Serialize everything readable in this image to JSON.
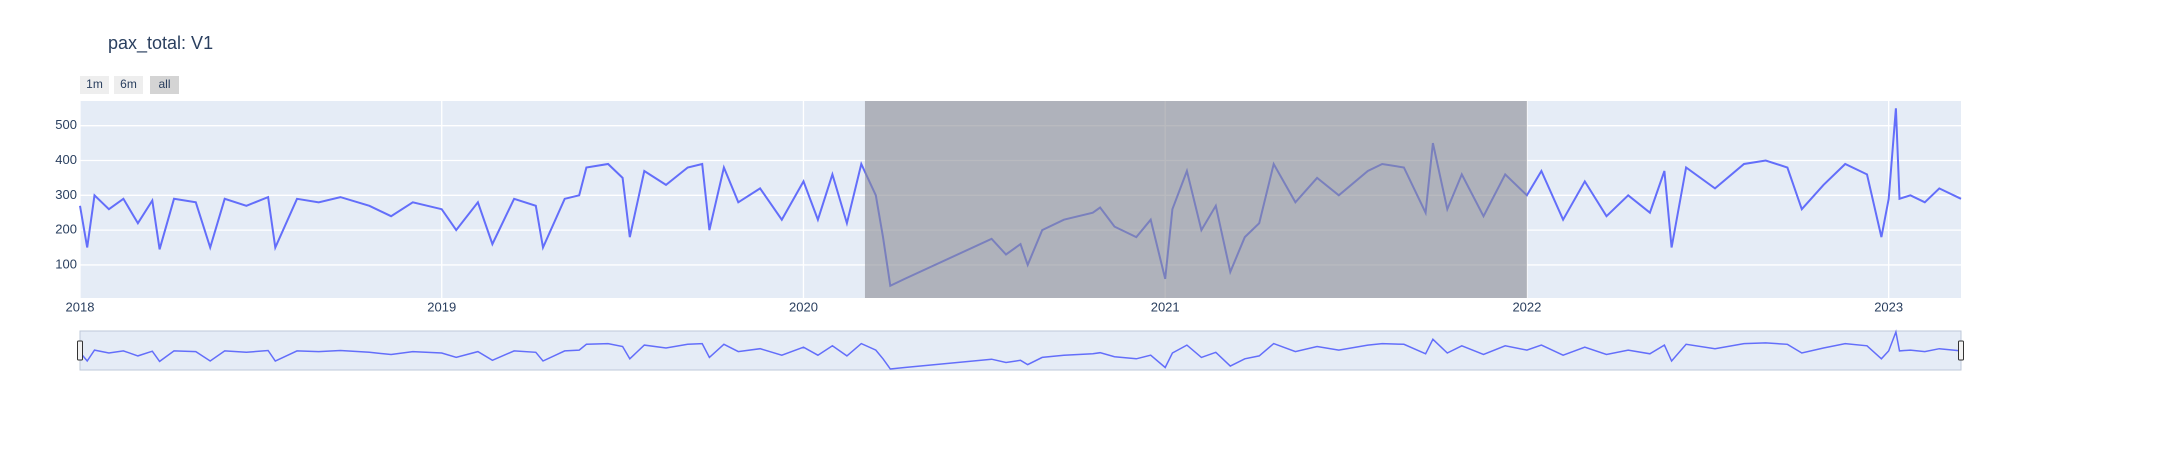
{
  "chart_data": {
    "type": "line",
    "title": "pax_total: V1",
    "buttons": [
      "1m",
      "6m",
      "all"
    ],
    "x": [
      2018.0,
      2018.02,
      2018.04,
      2018.08,
      2018.12,
      2018.16,
      2018.2,
      2018.22,
      2018.26,
      2018.32,
      2018.36,
      2018.4,
      2018.46,
      2018.52,
      2018.54,
      2018.6,
      2018.66,
      2018.72,
      2018.8,
      2018.86,
      2018.92,
      2019.0,
      2019.04,
      2019.1,
      2019.14,
      2019.2,
      2019.26,
      2019.28,
      2019.34,
      2019.38,
      2019.4,
      2019.46,
      2019.5,
      2019.52,
      2019.56,
      2019.62,
      2019.68,
      2019.72,
      2019.74,
      2019.78,
      2019.82,
      2019.88,
      2019.94,
      2020.0,
      2020.04,
      2020.08,
      2020.12,
      2020.16,
      2020.2,
      2020.22,
      2020.24,
      2020.28,
      2020.52,
      2020.56,
      2020.6,
      2020.62,
      2020.66,
      2020.72,
      2020.8,
      2020.82,
      2020.86,
      2020.92,
      2020.96,
      2021.0,
      2021.02,
      2021.06,
      2021.1,
      2021.14,
      2021.18,
      2021.22,
      2021.26,
      2021.3,
      2021.36,
      2021.42,
      2021.48,
      2021.56,
      2021.6,
      2021.66,
      2021.72,
      2021.74,
      2021.78,
      2021.82,
      2021.88,
      2021.94,
      2022.0,
      2022.04,
      2022.1,
      2022.16,
      2022.22,
      2022.28,
      2022.34,
      2022.38,
      2022.4,
      2022.44,
      2022.52,
      2022.6,
      2022.66,
      2022.72,
      2022.76,
      2022.82,
      2022.88,
      2022.94,
      2022.98,
      2023.0,
      2023.02,
      2023.03,
      2023.06,
      2023.1,
      2023.14,
      2023.2
    ],
    "series": [
      {
        "color": "#636efa",
        "values": [
          270,
          150,
          300,
          260,
          290,
          220,
          285,
          145,
          290,
          280,
          150,
          290,
          270,
          295,
          150,
          290,
          280,
          295,
          270,
          240,
          280,
          260,
          200,
          280,
          160,
          290,
          270,
          150,
          290,
          300,
          380,
          390,
          350,
          180,
          370,
          330,
          380,
          390,
          200,
          380,
          280,
          320,
          230,
          340,
          230,
          360,
          220,
          390,
          300,
          180,
          40,
          60,
          175,
          130,
          160,
          100,
          200,
          230,
          250,
          265,
          210,
          180,
          230,
          60,
          260,
          370,
          200,
          270,
          80,
          180,
          220,
          390,
          280,
          350,
          300,
          370,
          390,
          380,
          250,
          450,
          260,
          360,
          240,
          360,
          300,
          370,
          230,
          340,
          240,
          300,
          250,
          370,
          150,
          380,
          320,
          390,
          400,
          380,
          260,
          330,
          390,
          360,
          180,
          290,
          550,
          290,
          300,
          280,
          320,
          290
        ]
      }
    ],
    "xlim": [
      2018,
      2023.2
    ],
    "xticks": [
      2018,
      2019,
      2020,
      2021,
      2022,
      2023
    ],
    "ylim": [
      5,
      571
    ],
    "yticks": [
      100,
      200,
      300,
      400,
      500
    ],
    "highlight": {
      "x0": 2020.17,
      "x1": 2022.0,
      "color": "#8a8c94"
    },
    "grid": true,
    "background": "#e5ecf6",
    "rangeslider": true
  }
}
